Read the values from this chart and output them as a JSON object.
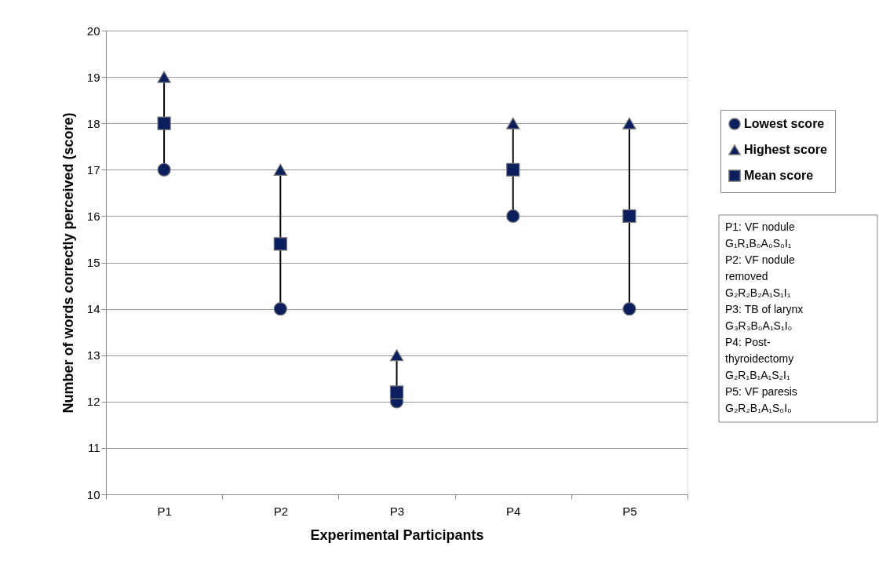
{
  "chart_data": {
    "type": "scatter",
    "xlabel": "Experimental Participants",
    "ylabel": "Number of words correctly perceived  (score)",
    "categories": [
      "P1",
      "P2",
      "P3",
      "P4",
      "P5"
    ],
    "series": [
      {
        "name": "Lowest score",
        "color": "#0b1f5e",
        "marker": "circle",
        "values": [
          17,
          14,
          12,
          16,
          14
        ]
      },
      {
        "name": "Highest score",
        "color": "#0b1f5e",
        "marker": "triangle",
        "values": [
          19,
          17,
          13,
          18,
          18
        ]
      },
      {
        "name": "Mean score",
        "color": "#0b1f5e",
        "marker": "square",
        "values": [
          18,
          15.4,
          12.2,
          17,
          16
        ]
      }
    ],
    "ylim": [
      10,
      20
    ],
    "yticks": [
      10,
      11,
      12,
      13,
      14,
      15,
      16,
      17,
      18,
      19,
      20
    ],
    "grid": "y",
    "legend": "right",
    "annotations": [
      "P1: VF nodule\nG₁R₁B₀A₀S₀I₁",
      "P2: VF nodule\nremoved\nG₂R₂B₂A₁S₁I₁",
      "P3: TB of larynx\nG₃R₃B₀A₁S₁I₀",
      "P4: Post-\nthyroidectomy\nG₂R₁B₁A₁S₂I₁",
      "P5: VF paresis\nG₂R₂B₁A₁S₀I₀"
    ]
  }
}
